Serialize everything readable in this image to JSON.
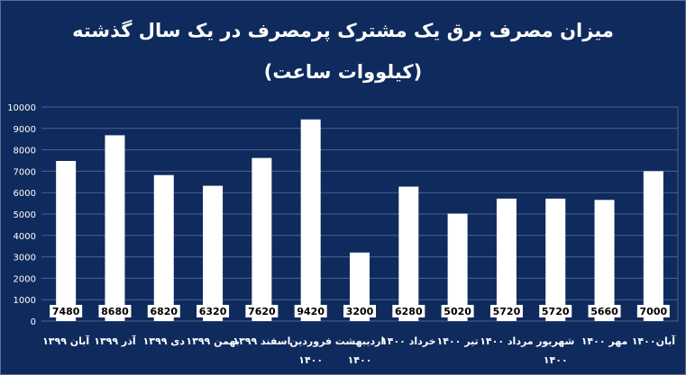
{
  "chart_data": {
    "type": "bar",
    "title": "میزان مصرف برق یک مشترک پرمصرف در یک سال گذشته",
    "subtitle": "(کیلووات ساعت)",
    "categories": [
      [
        "آبان ۱۳۹۹"
      ],
      [
        "آذر ۱۳۹۹"
      ],
      [
        "دی ۱۳۹۹"
      ],
      [
        "بهمن ۱۳۹۹"
      ],
      [
        "اسفند ۱۳۹۹"
      ],
      [
        "فروردین",
        "۱۴۰۰"
      ],
      [
        "اردیبهشت",
        "۱۴۰۰"
      ],
      [
        "خرداد ۱۴۰۰"
      ],
      [
        "تیر ۱۴۰۰"
      ],
      [
        "مرداد ۱۴۰۰"
      ],
      [
        "شهریور",
        "۱۴۰۰"
      ],
      [
        "مهر ۱۴۰۰"
      ],
      [
        "آبان۱۴۰۰"
      ]
    ],
    "values": [
      7480,
      8680,
      6820,
      6320,
      7620,
      9420,
      3200,
      6280,
      5020,
      5720,
      5720,
      5660,
      7000
    ],
    "ylim": [
      0,
      10000
    ],
    "yticks": [
      0,
      1000,
      2000,
      3000,
      4000,
      5000,
      6000,
      7000,
      8000,
      9000,
      10000
    ],
    "colors": {
      "background": "#0f2a5c",
      "bar": "#ffffff",
      "grid": "#4d6390"
    }
  }
}
